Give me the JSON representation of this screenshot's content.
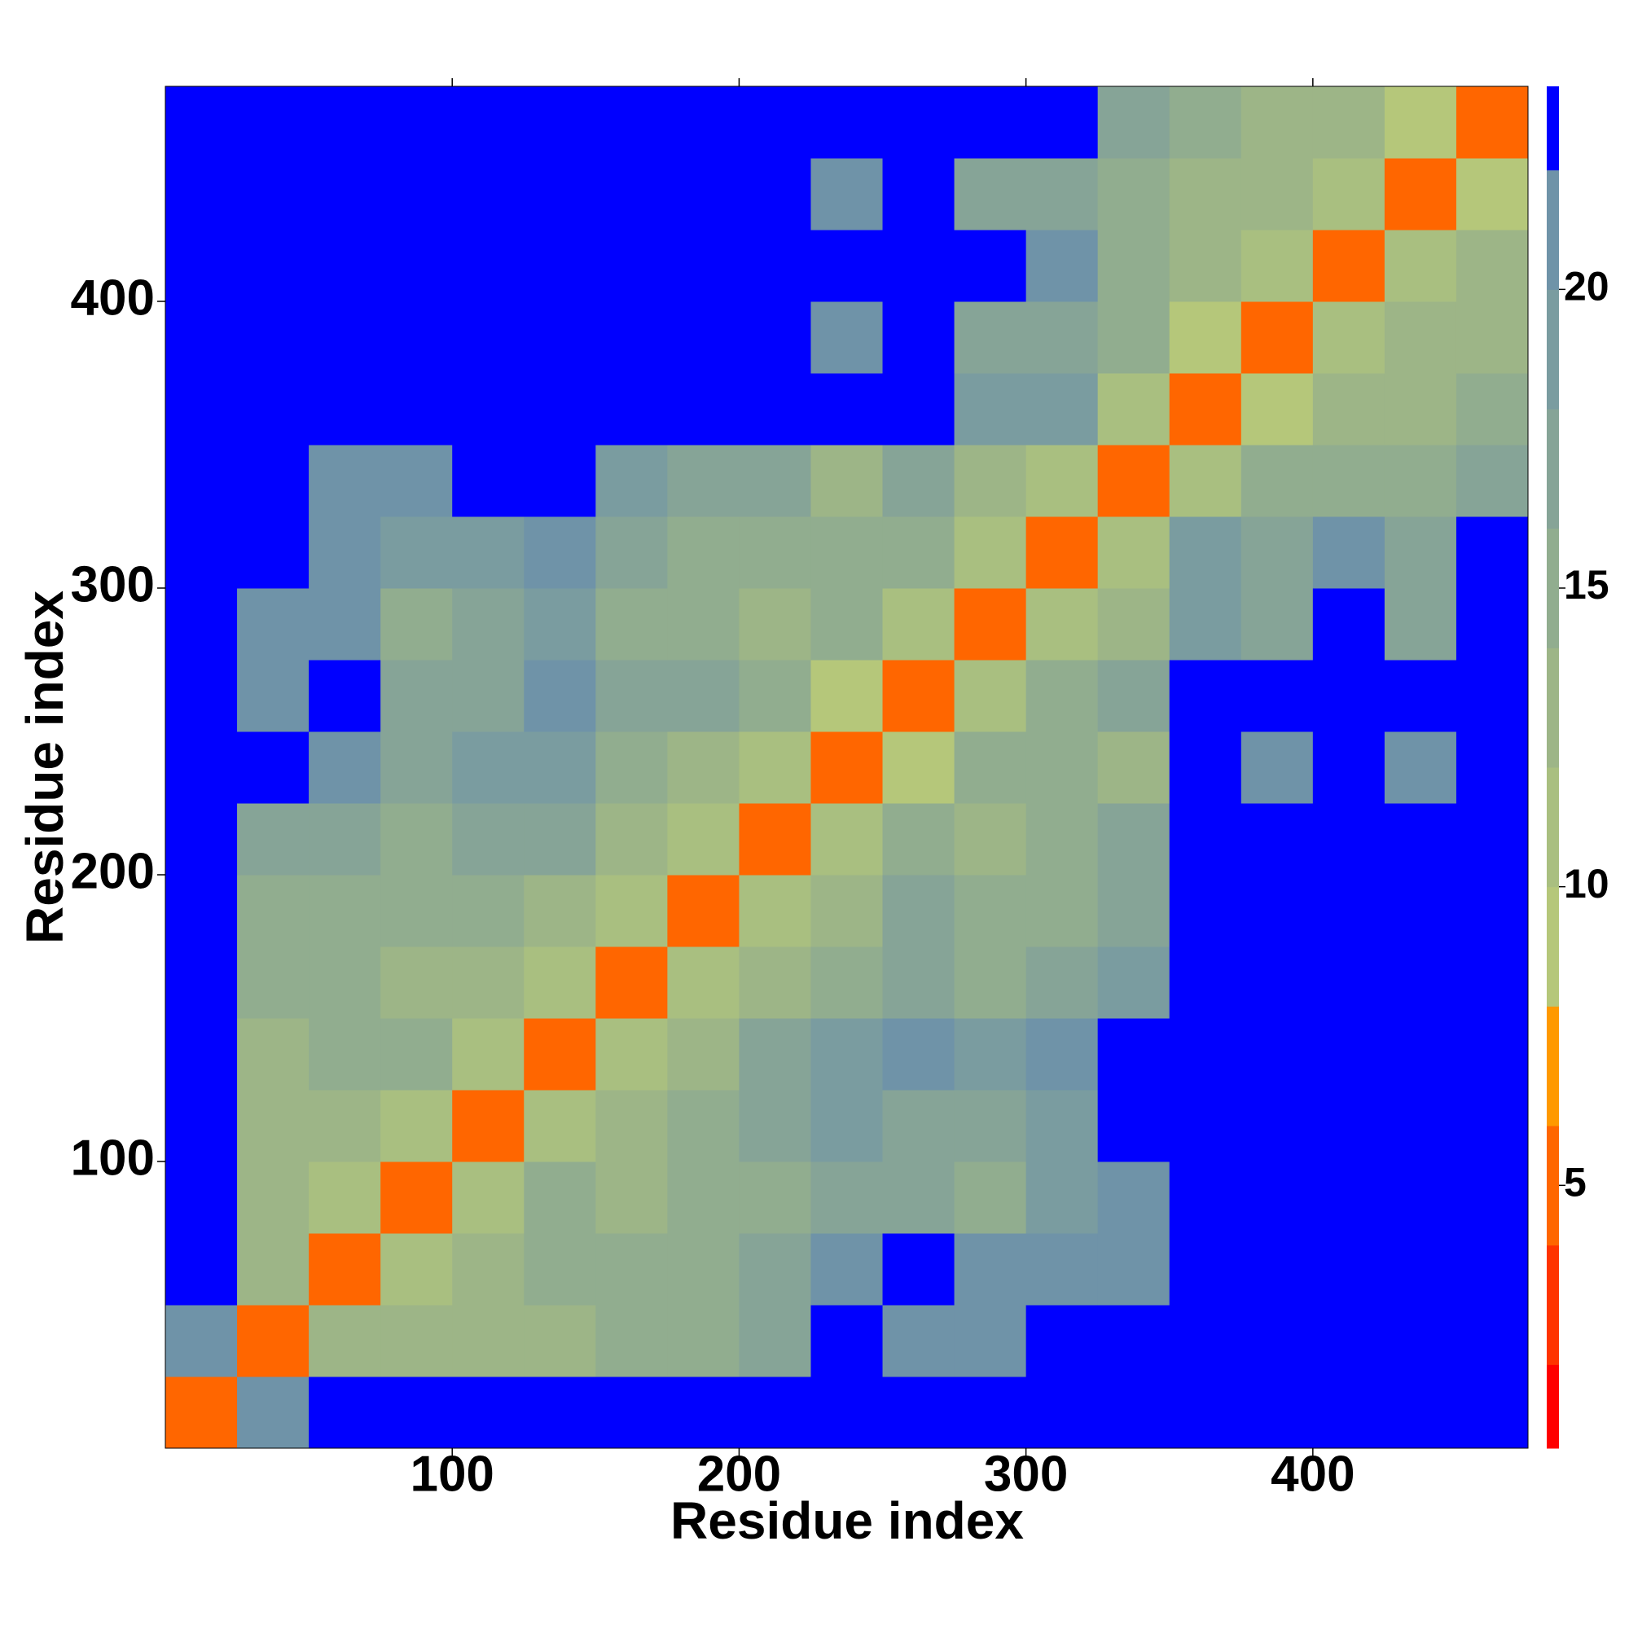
{
  "chart_data": {
    "type": "heatmap",
    "xlabel": "Residue index",
    "ylabel": "Residue index",
    "x_bins": [
      0,
      25,
      50,
      75,
      100,
      125,
      150,
      175,
      200,
      225,
      250,
      275,
      300,
      325,
      350,
      375,
      400,
      425,
      450,
      475
    ],
    "y_bins": [
      0,
      25,
      50,
      75,
      100,
      125,
      150,
      175,
      200,
      225,
      250,
      275,
      300,
      325,
      350,
      375,
      400,
      425,
      450,
      475
    ],
    "xlim": [
      0,
      475
    ],
    "ylim": [
      0,
      475
    ],
    "xticks": [
      100,
      200,
      300,
      400
    ],
    "yticks": [
      100,
      200,
      300,
      400
    ],
    "z": [
      [
        5,
        21,
        23,
        23,
        23,
        23,
        23,
        23,
        23,
        23,
        23,
        23,
        23,
        23,
        23,
        23,
        23,
        23,
        23
      ],
      [
        21,
        5,
        12,
        13,
        13,
        13,
        14,
        15,
        17,
        22,
        21,
        21,
        22,
        23,
        23,
        23,
        23,
        23,
        23
      ],
      [
        23,
        12,
        5,
        11,
        12,
        15,
        14,
        15,
        16,
        20,
        22,
        20,
        21,
        21,
        23,
        23,
        23,
        23,
        23
      ],
      [
        23,
        13,
        11,
        5,
        10,
        14,
        13,
        14,
        15,
        17,
        16,
        14,
        18,
        20,
        23,
        23,
        23,
        23,
        23
      ],
      [
        23,
        13,
        12,
        10,
        5,
        10,
        13,
        14,
        16,
        19,
        17,
        16,
        19,
        22,
        23,
        23,
        23,
        23,
        23
      ],
      [
        23,
        13,
        15,
        14,
        10,
        5,
        10,
        12,
        16,
        19,
        20,
        19,
        20,
        22,
        23,
        23,
        23,
        23,
        23
      ],
      [
        23,
        14,
        14,
        13,
        13,
        10,
        5,
        10,
        13,
        15,
        17,
        15,
        16,
        18,
        23,
        23,
        23,
        23,
        23
      ],
      [
        23,
        15,
        15,
        14,
        14,
        12,
        10,
        5,
        11,
        13,
        16,
        14,
        14,
        17,
        23,
        23,
        23,
        23,
        23
      ],
      [
        23,
        17,
        16,
        15,
        16,
        16,
        13,
        11,
        5,
        10,
        15,
        13,
        14,
        16,
        23,
        22,
        23,
        22,
        23
      ],
      [
        23,
        22,
        20,
        17,
        19,
        19,
        15,
        13,
        10,
        5,
        8,
        14,
        15,
        13,
        22,
        20,
        22,
        21,
        23
      ],
      [
        23,
        21,
        22,
        16,
        17,
        20,
        17,
        16,
        15,
        8,
        5,
        10,
        14,
        16,
        23,
        23,
        23,
        23,
        23
      ],
      [
        23,
        21,
        20,
        14,
        16,
        19,
        15,
        14,
        13,
        14,
        10,
        5,
        10,
        13,
        18,
        17,
        22,
        17,
        23
      ],
      [
        23,
        22,
        21,
        18,
        19,
        20,
        16,
        14,
        14,
        15,
        14,
        10,
        5,
        10,
        19,
        16,
        20,
        17,
        23
      ],
      [
        23,
        23,
        21,
        20,
        22,
        22,
        18,
        17,
        16,
        13,
        16,
        13,
        10,
        5,
        11,
        14,
        15,
        14,
        16
      ],
      [
        23,
        23,
        23,
        23,
        23,
        23,
        23,
        23,
        23,
        22,
        23,
        18,
        19,
        11,
        5,
        9,
        12,
        13,
        15
      ],
      [
        23,
        23,
        23,
        23,
        23,
        23,
        23,
        23,
        22,
        20,
        23,
        17,
        16,
        14,
        9,
        5,
        10,
        12,
        13
      ],
      [
        23,
        23,
        23,
        23,
        23,
        23,
        23,
        23,
        23,
        22,
        23,
        22,
        20,
        15,
        12,
        10,
        5,
        10,
        12
      ],
      [
        23,
        23,
        23,
        23,
        23,
        23,
        23,
        23,
        22,
        21,
        23,
        17,
        17,
        14,
        13,
        12,
        10,
        5,
        9
      ],
      [
        23,
        23,
        23,
        23,
        23,
        23,
        23,
        23,
        23,
        23,
        23,
        23,
        23,
        16,
        15,
        13,
        12,
        9,
        5
      ]
    ],
    "color_levels": [
      0.6,
      2,
      4,
      6,
      8,
      10,
      12,
      14,
      16,
      18,
      20,
      22,
      23.4
    ],
    "colors": [
      "#ff0000",
      "#ff3300",
      "#ff6600",
      "#ff9900",
      "#b5c77a",
      "#a9bf80",
      "#9db587",
      "#91ad8f",
      "#86a497",
      "#7a9ca0",
      "#6f93a8",
      "#0000ff"
    ],
    "colorbar_ticks": [
      5,
      10,
      15,
      20
    ]
  }
}
